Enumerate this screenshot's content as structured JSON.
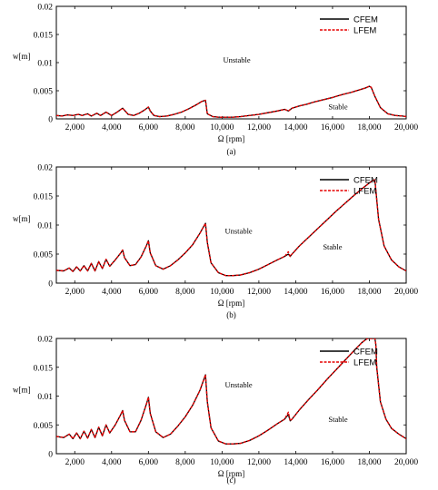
{
  "chart_data": [
    {
      "type": "line",
      "caption": "(a)",
      "xlabel": "Ω [rpm]",
      "ylabel": "w[m]",
      "xlim": [
        1000,
        20000
      ],
      "ylim": [
        0,
        0.02
      ],
      "xticks": [
        "2,000",
        "4,000",
        "6,000",
        "8,000",
        "10,000",
        "12,000",
        "14,000",
        "16,000",
        "18,000",
        "20,000"
      ],
      "yticks": [
        "0",
        "0.005",
        "0.01",
        "0.015",
        "0.02"
      ],
      "legend_position": "top-right",
      "annotations": [
        {
          "text": "Unstable",
          "x": 10800,
          "y": 0.01
        },
        {
          "text": "Stable",
          "x": 16300,
          "y": 0.0017
        }
      ],
      "series": [
        {
          "name": "CFEM",
          "color": "#000000",
          "style": "solid",
          "x": [
            1000,
            1300,
            1600,
            1900,
            2200,
            2400,
            2700,
            2900,
            3200,
            3400,
            3700,
            4000,
            4300,
            4600,
            4900,
            5200,
            5500,
            5800,
            6000,
            6100,
            6300,
            6600,
            7000,
            7400,
            7800,
            8200,
            8600,
            8900,
            9100,
            9200,
            9500,
            9800,
            10200,
            10600,
            11000,
            11500,
            12000,
            12500,
            13000,
            13400,
            13600,
            13800,
            14200,
            14600,
            15000,
            15500,
            16000,
            16500,
            17000,
            17500,
            17800,
            18000,
            18100,
            18300,
            18600,
            19000,
            19400,
            19800,
            20000
          ],
          "y": [
            0.0006,
            0.0005,
            0.0007,
            0.0006,
            0.0008,
            0.0006,
            0.0009,
            0.0005,
            0.001,
            0.0006,
            0.0012,
            0.0006,
            0.0012,
            0.0019,
            0.0008,
            0.0006,
            0.001,
            0.0016,
            0.0021,
            0.0014,
            0.0006,
            0.0004,
            0.0005,
            0.0008,
            0.0012,
            0.0018,
            0.0025,
            0.0031,
            0.0033,
            0.0009,
            0.0004,
            0.0003,
            0.0003,
            0.0003,
            0.0004,
            0.0006,
            0.0008,
            0.0011,
            0.0014,
            0.0017,
            0.0014,
            0.0019,
            0.0023,
            0.0026,
            0.003,
            0.0034,
            0.0038,
            0.0043,
            0.0047,
            0.0052,
            0.0055,
            0.0058,
            0.0056,
            0.004,
            0.002,
            0.0009,
            0.0006,
            0.0005,
            0.0004
          ]
        },
        {
          "name": "LFEM",
          "color": "#e60000",
          "style": "dashed",
          "x": [
            1000,
            1300,
            1600,
            1900,
            2200,
            2400,
            2700,
            2900,
            3200,
            3400,
            3700,
            4000,
            4300,
            4600,
            4900,
            5200,
            5500,
            5800,
            6000,
            6100,
            6300,
            6600,
            7000,
            7400,
            7800,
            8200,
            8600,
            8900,
            9100,
            9200,
            9500,
            9800,
            10200,
            10600,
            11000,
            11500,
            12000,
            12500,
            13000,
            13400,
            13600,
            13800,
            14200,
            14600,
            15000,
            15500,
            16000,
            16500,
            17000,
            17500,
            17800,
            18000,
            18100,
            18300,
            18600,
            19000,
            19400,
            19800,
            20000
          ],
          "y": [
            0.0006,
            0.0005,
            0.0007,
            0.0006,
            0.0008,
            0.0006,
            0.0009,
            0.0005,
            0.001,
            0.0006,
            0.0012,
            0.0006,
            0.0012,
            0.0019,
            0.0008,
            0.0006,
            0.001,
            0.0016,
            0.0021,
            0.0014,
            0.0006,
            0.0004,
            0.0005,
            0.0008,
            0.0012,
            0.0018,
            0.0025,
            0.0031,
            0.0033,
            0.0009,
            0.0004,
            0.0003,
            0.0003,
            0.0003,
            0.0004,
            0.0006,
            0.0008,
            0.0011,
            0.0014,
            0.0017,
            0.0014,
            0.0019,
            0.0023,
            0.0026,
            0.003,
            0.0034,
            0.0038,
            0.0043,
            0.0047,
            0.0052,
            0.0055,
            0.0058,
            0.0056,
            0.004,
            0.002,
            0.0009,
            0.0006,
            0.0005,
            0.0004
          ]
        }
      ]
    },
    {
      "type": "line",
      "caption": "(b)",
      "xlabel": "Ω [rpm]",
      "ylabel": "w[m]",
      "xlim": [
        1000,
        20000
      ],
      "ylim": [
        0,
        0.02
      ],
      "xticks": [
        "2,000",
        "4,000",
        "6,000",
        "8,000",
        "10,000",
        "12,000",
        "14,000",
        "16,000",
        "18,000",
        "20,000"
      ],
      "yticks": [
        "0",
        "0.005",
        "0.01",
        "0.015",
        "0.02"
      ],
      "legend_position": "top-right",
      "annotations": [
        {
          "text": "Unstable",
          "x": 10900,
          "y": 0.0085
        },
        {
          "text": "Stable",
          "x": 16000,
          "y": 0.0058
        }
      ],
      "series": [
        {
          "name": "CFEM",
          "color": "#000000",
          "style": "solid",
          "x": [
            1000,
            1400,
            1700,
            1900,
            2100,
            2300,
            2500,
            2700,
            2900,
            3100,
            3300,
            3500,
            3700,
            3900,
            4200,
            4500,
            4600,
            4700,
            5000,
            5300,
            5600,
            5900,
            6000,
            6100,
            6400,
            6800,
            7200,
            7600,
            8000,
            8400,
            8800,
            9100,
            9200,
            9400,
            9800,
            10200,
            10600,
            11000,
            11500,
            12000,
            12500,
            13000,
            13400,
            13600,
            13700,
            13800,
            14200,
            14700,
            15200,
            15700,
            16200,
            16700,
            17200,
            17700,
            18100,
            18300,
            18500,
            18800,
            19200,
            19600,
            20000
          ],
          "y": [
            0.0022,
            0.0021,
            0.0026,
            0.002,
            0.0028,
            0.0021,
            0.003,
            0.0021,
            0.0034,
            0.0021,
            0.0037,
            0.0025,
            0.0041,
            0.0029,
            0.004,
            0.0052,
            0.0057,
            0.0044,
            0.003,
            0.0032,
            0.0045,
            0.0065,
            0.0073,
            0.0052,
            0.003,
            0.0024,
            0.003,
            0.004,
            0.0052,
            0.0066,
            0.0086,
            0.0103,
            0.007,
            0.0035,
            0.0018,
            0.0013,
            0.0013,
            0.0014,
            0.0018,
            0.0024,
            0.0032,
            0.004,
            0.0046,
            0.005,
            0.0046,
            0.005,
            0.0064,
            0.0079,
            0.0094,
            0.0109,
            0.0124,
            0.0138,
            0.0152,
            0.0165,
            0.0175,
            0.0178,
            0.011,
            0.0064,
            0.004,
            0.0028,
            0.0021
          ]
        },
        {
          "name": "LFEM",
          "color": "#e60000",
          "style": "dashed",
          "x": [
            1000,
            1400,
            1700,
            1900,
            2100,
            2300,
            2500,
            2700,
            2900,
            3100,
            3300,
            3500,
            3700,
            3900,
            4200,
            4500,
            4600,
            4700,
            5000,
            5300,
            5600,
            5900,
            6000,
            6100,
            6400,
            6800,
            7200,
            7600,
            8000,
            8400,
            8800,
            9100,
            9200,
            9400,
            9800,
            10200,
            10600,
            11000,
            11500,
            12000,
            12500,
            13000,
            13400,
            13600,
            13700,
            13800,
            14200,
            14700,
            15200,
            15700,
            16200,
            16700,
            17200,
            17700,
            18100,
            18300,
            18500,
            18800,
            19200,
            19600,
            20000
          ],
          "y": [
            0.0022,
            0.0021,
            0.0026,
            0.002,
            0.0028,
            0.0021,
            0.003,
            0.0021,
            0.0034,
            0.0021,
            0.0037,
            0.0025,
            0.0041,
            0.0029,
            0.004,
            0.0052,
            0.0057,
            0.0044,
            0.003,
            0.0032,
            0.0045,
            0.0065,
            0.0073,
            0.0052,
            0.003,
            0.0024,
            0.003,
            0.004,
            0.0052,
            0.0066,
            0.0086,
            0.0103,
            0.007,
            0.0035,
            0.0018,
            0.0013,
            0.0013,
            0.0014,
            0.0018,
            0.0024,
            0.0032,
            0.004,
            0.0046,
            0.0054,
            0.0046,
            0.005,
            0.0064,
            0.0079,
            0.0094,
            0.0109,
            0.0124,
            0.0138,
            0.0152,
            0.0165,
            0.0175,
            0.0178,
            0.011,
            0.0064,
            0.004,
            0.0028,
            0.0021
          ]
        }
      ]
    },
    {
      "type": "line",
      "caption": "(c)",
      "xlabel": "Ω [rpm]",
      "ylabel": "w[m]",
      "xlim": [
        1000,
        20000
      ],
      "ylim": [
        0,
        0.02
      ],
      "xticks": [
        "2,000",
        "4,000",
        "6,000",
        "8,000",
        "10,000",
        "12,000",
        "14,000",
        "16,000",
        "18,000",
        "20,000"
      ],
      "yticks": [
        "0",
        "0.005",
        "0.01",
        "0.015",
        "0.02"
      ],
      "legend_position": "top-right",
      "annotations": [
        {
          "text": "Unstable",
          "x": 10900,
          "y": 0.0115
        },
        {
          "text": "Stable",
          "x": 16300,
          "y": 0.0055
        }
      ],
      "series": [
        {
          "name": "CFEM",
          "color": "#000000",
          "style": "solid",
          "x": [
            1000,
            1400,
            1700,
            1900,
            2100,
            2300,
            2500,
            2700,
            2900,
            3100,
            3300,
            3500,
            3700,
            3900,
            4200,
            4500,
            4600,
            4700,
            5000,
            5300,
            5600,
            5900,
            6000,
            6100,
            6400,
            6800,
            7200,
            7600,
            8000,
            8400,
            8800,
            9100,
            9200,
            9400,
            9800,
            10200,
            10600,
            11000,
            11500,
            12000,
            12500,
            13000,
            13400,
            13600,
            13700,
            13800,
            14200,
            14700,
            15200,
            15700,
            16200,
            16700,
            17200,
            17600,
            17800,
            17900,
            18300,
            18350,
            18400,
            18600,
            18900,
            19200,
            19600,
            20000
          ],
          "y": [
            0.003,
            0.0028,
            0.0034,
            0.0026,
            0.0036,
            0.0026,
            0.0039,
            0.0027,
            0.0042,
            0.0028,
            0.0046,
            0.0031,
            0.005,
            0.0036,
            0.005,
            0.0068,
            0.0075,
            0.0058,
            0.0038,
            0.0038,
            0.0058,
            0.0087,
            0.0098,
            0.007,
            0.0038,
            0.0028,
            0.0034,
            0.0048,
            0.0064,
            0.0084,
            0.011,
            0.0137,
            0.009,
            0.0045,
            0.0022,
            0.0017,
            0.0017,
            0.0018,
            0.0023,
            0.0031,
            0.0041,
            0.0052,
            0.006,
            0.0068,
            0.0057,
            0.006,
            0.0076,
            0.0094,
            0.0111,
            0.0129,
            0.0146,
            0.0163,
            0.018,
            0.0193,
            0.0198,
            0.02,
            0.02,
            0.019,
            0.015,
            0.009,
            0.006,
            0.0044,
            0.0034,
            0.0026
          ]
        },
        {
          "name": "LFEM",
          "color": "#e60000",
          "style": "dashed",
          "x": [
            1000,
            1400,
            1700,
            1900,
            2100,
            2300,
            2500,
            2700,
            2900,
            3100,
            3300,
            3500,
            3700,
            3900,
            4200,
            4500,
            4600,
            4700,
            5000,
            5300,
            5600,
            5900,
            6000,
            6100,
            6400,
            6800,
            7200,
            7600,
            8000,
            8400,
            8800,
            9100,
            9200,
            9400,
            9800,
            10200,
            10600,
            11000,
            11500,
            12000,
            12500,
            13000,
            13400,
            13600,
            13700,
            13800,
            14200,
            14700,
            15200,
            15700,
            16200,
            16700,
            17200,
            17600,
            17800,
            17900,
            18300,
            18350,
            18400,
            18600,
            18900,
            19200,
            19600,
            20000
          ],
          "y": [
            0.003,
            0.0028,
            0.0034,
            0.0026,
            0.0036,
            0.0026,
            0.0039,
            0.0027,
            0.0042,
            0.0028,
            0.0046,
            0.0031,
            0.005,
            0.0036,
            0.005,
            0.0068,
            0.0075,
            0.0058,
            0.0038,
            0.0038,
            0.0058,
            0.0087,
            0.0098,
            0.007,
            0.0038,
            0.0028,
            0.0034,
            0.0048,
            0.0064,
            0.0084,
            0.011,
            0.0137,
            0.009,
            0.0045,
            0.0022,
            0.0017,
            0.0017,
            0.0018,
            0.0023,
            0.0031,
            0.0041,
            0.0052,
            0.006,
            0.0072,
            0.0057,
            0.006,
            0.0076,
            0.0094,
            0.0111,
            0.0129,
            0.0146,
            0.0163,
            0.018,
            0.0193,
            0.0198,
            0.02,
            0.02,
            0.019,
            0.015,
            0.009,
            0.006,
            0.0044,
            0.0034,
            0.0026
          ]
        }
      ]
    }
  ]
}
